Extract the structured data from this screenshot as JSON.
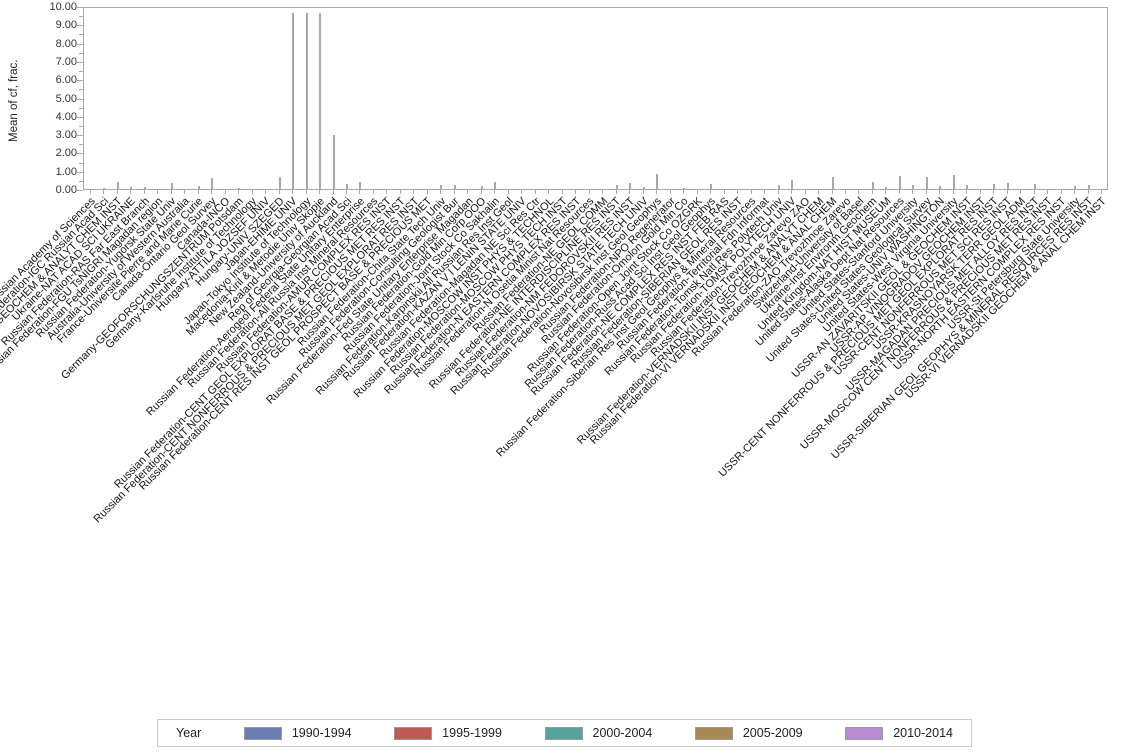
{
  "chart_data": {
    "type": "bar",
    "title": "",
    "ylabel": "Mean of cf, frac.",
    "xlabel": "",
    "ylim": [
      0,
      10
    ],
    "ytick_step": 1.0,
    "ytick_minor_step": 0.5,
    "ytick_decimals": 2,
    "grid": false,
    "bar_color": "#a8a8a8",
    "frame_color": "#a6aaad",
    "legend": {
      "title": "Year",
      "position": "bottom",
      "entries": [
        {
          "label": "1990-1994",
          "color": "#6b7eb3"
        },
        {
          "label": "1995-1999",
          "color": "#bf5b57"
        },
        {
          "label": "2000-2004",
          "color": "#56a49c"
        },
        {
          "label": "2005-2009",
          "color": "#a98a56"
        },
        {
          "label": "2010-2014",
          "color": "#b88ccf"
        }
      ]
    },
    "categories": [
      "Russian Federation-Russian Academy of Sciences",
      "Russian Federation-IGC Russian Acad Sci",
      "Russian Federation-VERNADSKII GEOCHEM & ANALYT CHEM INST",
      "Ukraine-NAT ACAD SCI UKRAINE",
      "Russian Federation-RAS Far East Branch",
      "Russian Federation-FGU TsNIGRI Magadan region",
      "Russian Federation-Yugorsk State Univ",
      "Australia-University of Western Australia",
      "France-Universite Pierre and Marie Curie",
      "Canada-Ontario Geol Survey",
      "Canada-INCO",
      "Germany-GEOFORSCHUNGSZENTRUM Potsdam",
      "Germany-Karlsruhe Institute of Technology",
      "Hungary-ATTILA JOZSEF UNIV",
      "Hungary-UNIV SZEGED",
      "Japan-EHIME UNIV",
      "Japan-Tokyo Institute of Technology",
      "Macedonia-Kiril & Metodie Univ Skopje",
      "New Zealand-University of Auckland",
      "Rep of Georgia-Georgian Acad Sci",
      "Russian Federation-Aerogeol Federal State Unitary Enterprise",
      "Russian Federation-All Russia Inst Mineral Resources",
      "Russian Federation-AMUR COMPLEX RES INST",
      "Russian Federation-CENT GEOL EXPLORAT BASE & PRECIOUS MET RES INST",
      "Russian Federation-CENT NONFERROUS & PRECIOUS MET GEOL EXPLORAT RES INST",
      "Russian Federation-CENT RES INST GEOL PROSPECT BASE & PRECIOUS MET",
      "Russian Federation-Chita State Tech Univ",
      "Russian Federation-Consulting Geologist Bur",
      "Russian Federation-Fed State Unitary Enterprise Magadan",
      "Russian Federation-Gold Min Corp OOO",
      "Russian Federation-Joint Stock Co Sakhalin",
      "Russian Federation-Karpinskii All Russian Res Inst Geol",
      "Russian Federation-KAZAN V I LENIN STATE UNIV",
      "Russian Federation-Magadan NE Sci Res Ctr",
      "Russian Federation-MOSCOW INST PHYS & TECHNOL",
      "Russian Federation-MOSCOW PHYS TECH INST",
      "Russian Federation-N EASTERN COMPLEX RES INST",
      "Russian Federation-N Osetia Minist Nat Resources",
      "Russian Federation-NE GEOL COMM",
      "Russian Federation-NE INTERDISCIPLINE RES INST",
      "Russian Federation-NM FEDOROVSKII RES INST",
      "Russian Federation-NOVOSIBIRSK STATE TECH UNIV",
      "Russian Federation-Novosibirsk Inst Geol Geophys",
      "Russian Federation-NPO Regenerator",
      "Russian Federation-Omolon Gold Min Co",
      "Russian Federation-Open Joint Stock Co OZGRK",
      "Russian Federation-Russ Acad Sci Inst Geol Geophys",
      "Russian Federation-NE COMPLEX RES INST FEB RAS",
      "Russian Federation-SIBERIAN GEOL RES INST",
      "Russian Federation-Siberian Res Inst Geol Geophys & Mineral Resources",
      "Russian Federation-Territorial Fdn Informat",
      "Russian Federation-Tomsk Natl Res Polytech Univ",
      "Russian Federation-TOMSK POLYTECH UNIV",
      "Russian Federation-Trevozhnoe Zarevo ZAO",
      "Russian Federation-VERNADSKII INST GEOCHEM & ANALYT CHEM",
      "Russian Federation-VI VERNADSKII INST GEOCHEM & ANAL CHEM",
      "Russian Federation-ZAO Trevozhnoe Zarevo",
      "Switzerland-University of Basel",
      "Ukraine-Inst Environm Geochem",
      "United Kingdom-NAT HIST MUSEUM",
      "United States-Alaska Dept Nat Resources",
      "United States-Stanford University",
      "United States-United States Geological Survey",
      "United States-UNIV WASHINGTON",
      "United States-West Virginia University",
      "USSR-AN ZAVARITSKII GEOL & GEOCHEM INST",
      "USSR-AP VINOGRADOV GEOCHEM INST",
      "USSR-CENT NONFERROUS & PRECIOUS MET GEOL EXPLORAT RES INST",
      "USSR-CENT NONFERROUS MET SCI RES INST",
      "USSR-KRASNOYARSK TERR GEOL ADM",
      "USSR-MAGADAN PRECIOUS MET ALLOY RES INST",
      "USSR-MOSCOW CENT NONFERROUS & PRECIOUS MET RES INST",
      "USSR-NORTH EASTERN COMPLEX RES INST",
      "USSR-St Petersburg State University",
      "USSR-SIBERIAN GEOL GEOPHYS & MINERAL RESOURCES RES INST",
      "USSR-VI VERNADSKII GEOCHEM & ANAL CHEM INST"
    ],
    "values": [
      0.08,
      0.1,
      0.45,
      0.15,
      0.18,
      0.08,
      0.37,
      0,
      0.22,
      0.64,
      0.08,
      0.1,
      0,
      0.06,
      0.7,
      9.65,
      9.65,
      9.65,
      3.0,
      0.35,
      0.45,
      0,
      0,
      0,
      0,
      0,
      0.3,
      0.25,
      0,
      0.2,
      0.45,
      0,
      0,
      0.05,
      0,
      0,
      0,
      0,
      0,
      0.3,
      0.4,
      0.15,
      0.85,
      0,
      0.12,
      0,
      0.35,
      0.06,
      0,
      0,
      0,
      0.28,
      0.55,
      0,
      0.08,
      0.73,
      0.08,
      0.08,
      0.45,
      0.15,
      0.78,
      0.27,
      0.73,
      0.22,
      0.8,
      0.27,
      0,
      0.33,
      0.37,
      0,
      0.33,
      0,
      0,
      0.22,
      0.27,
      0
    ]
  }
}
